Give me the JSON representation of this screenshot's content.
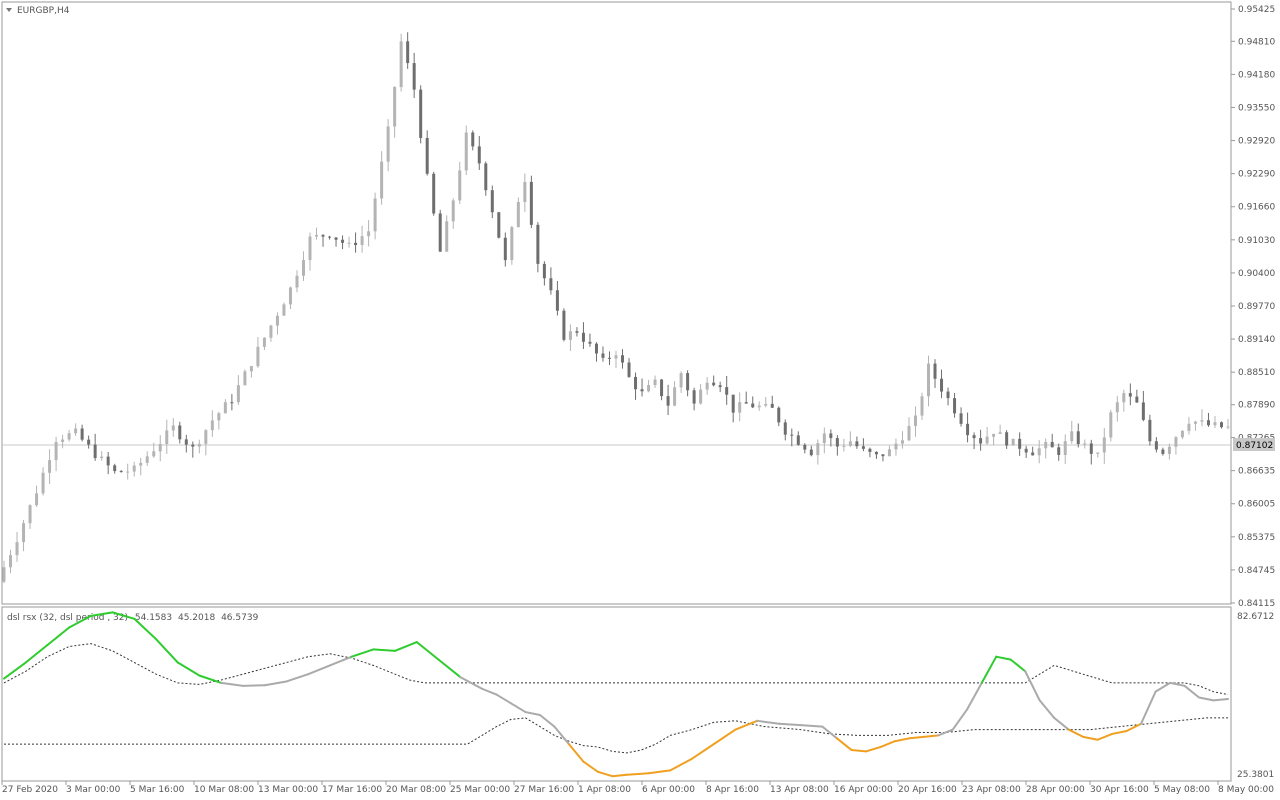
{
  "chart_data": {
    "type": "candlestick",
    "symbol": "EURGBP,H4",
    "price_axis": {
      "ticks": [
        "0.95425",
        "0.94810",
        "0.94180",
        "0.93550",
        "0.92920",
        "0.92290",
        "0.91660",
        "0.91030",
        "0.90400",
        "0.89770",
        "0.89140",
        "0.88510",
        "0.87890",
        "0.87265",
        "0.86635",
        "0.86005",
        "0.85375",
        "0.84745",
        "0.84115"
      ],
      "ylim": [
        0.84115,
        0.95425
      ],
      "current_price": "0.87102"
    },
    "time_axis": {
      "ticks": [
        "27 Feb 2020",
        "3 Mar 00:00",
        "5 Mar 16:00",
        "10 Mar 08:00",
        "13 Mar 00:00",
        "17 Mar 16:00",
        "20 Mar 08:00",
        "25 Mar 00:00",
        "27 Mar 16:00",
        "1 Apr 08:00",
        "6 Apr 00:00",
        "8 Apr 16:00",
        "13 Apr 08:00",
        "16 Apr 00:00",
        "20 Apr 16:00",
        "23 Apr 08:00",
        "28 Apr 00:00",
        "30 Apr 16:00",
        "5 May 08:00",
        "8 May 00:00"
      ]
    },
    "close_path": [
      [
        0.8452,
        0
      ],
      [
        0.8535,
        3
      ],
      [
        0.8625,
        6
      ],
      [
        0.8725,
        9
      ],
      [
        0.8735,
        12
      ],
      [
        0.8695,
        15
      ],
      [
        0.866,
        18
      ],
      [
        0.8665,
        21
      ],
      [
        0.8705,
        24
      ],
      [
        0.8745,
        27
      ],
      [
        0.8705,
        30
      ],
      [
        0.876,
        33
      ],
      [
        0.88,
        36
      ],
      [
        0.887,
        39
      ],
      [
        0.894,
        42
      ],
      [
        0.901,
        45
      ],
      [
        0.9105,
        48
      ],
      [
        0.9115,
        51
      ],
      [
        0.909,
        54
      ],
      [
        0.912,
        57
      ],
      [
        0.931,
        60
      ],
      [
        0.948,
        62
      ],
      [
        0.939,
        64
      ],
      [
        0.922,
        66
      ],
      [
        0.908,
        68
      ],
      [
        0.918,
        70
      ],
      [
        0.93,
        72
      ],
      [
        0.925,
        74
      ],
      [
        0.916,
        76
      ],
      [
        0.906,
        78
      ],
      [
        0.918,
        80
      ],
      [
        0.922,
        81
      ],
      [
        0.906,
        83
      ],
      [
        0.9,
        85
      ],
      [
        0.892,
        87
      ],
      [
        0.893,
        89
      ],
      [
        0.89,
        91
      ],
      [
        0.887,
        93
      ],
      [
        0.889,
        95
      ],
      [
        0.884,
        97
      ],
      [
        0.881,
        99
      ],
      [
        0.883,
        101
      ],
      [
        0.879,
        103
      ],
      [
        0.885,
        105
      ],
      [
        0.879,
        107
      ],
      [
        0.884,
        109
      ],
      [
        0.883,
        111
      ],
      [
        0.878,
        113
      ],
      [
        0.879,
        115
      ],
      [
        0.8785,
        117
      ],
      [
        0.878,
        119
      ],
      [
        0.874,
        121
      ],
      [
        0.872,
        123
      ],
      [
        0.87,
        125
      ],
      [
        0.8735,
        127
      ],
      [
        0.871,
        129
      ],
      [
        0.872,
        131
      ],
      [
        0.87,
        133
      ],
      [
        0.869,
        135
      ],
      [
        0.87,
        137
      ],
      [
        0.873,
        139
      ],
      [
        0.876,
        141
      ],
      [
        0.886,
        143
      ],
      [
        0.882,
        145
      ],
      [
        0.878,
        147
      ],
      [
        0.874,
        149
      ],
      [
        0.872,
        151
      ],
      [
        0.874,
        153
      ],
      [
        0.872,
        155
      ],
      [
        0.871,
        157
      ],
      [
        0.87,
        159
      ],
      [
        0.871,
        161
      ],
      [
        0.87,
        163
      ],
      [
        0.873,
        165
      ],
      [
        0.871,
        167
      ],
      [
        0.869,
        169
      ],
      [
        0.877,
        171
      ],
      [
        0.881,
        173
      ],
      [
        0.879,
        175
      ],
      [
        0.872,
        177
      ],
      [
        0.87,
        179
      ],
      [
        0.873,
        181
      ],
      [
        0.876,
        183
      ],
      [
        0.875,
        186
      ],
      [
        0.8745,
        189
      ]
    ],
    "indicator": {
      "name": "dsl rsx (32, dsl period , 32)",
      "values": [
        "54.1583",
        "45.2018",
        "46.5739"
      ],
      "axis_ticks": [
        "82.6712",
        "25.3801"
      ],
      "ylim": [
        25.3801,
        82.6712
      ],
      "rsx": [
        [
          59.5,
          0
        ],
        [
          65,
          3
        ],
        [
          71,
          6
        ],
        [
          77,
          9
        ],
        [
          81,
          12
        ],
        [
          82.2,
          15
        ],
        [
          80,
          18
        ],
        [
          73,
          21
        ],
        [
          65,
          24
        ],
        [
          60.5,
          27
        ],
        [
          58,
          30
        ],
        [
          57,
          33
        ],
        [
          57.2,
          36
        ],
        [
          58.5,
          39
        ],
        [
          61,
          42
        ],
        [
          64,
          45
        ],
        [
          67,
          48
        ],
        [
          69.5,
          51
        ],
        [
          69,
          54
        ],
        [
          72,
          57
        ],
        [
          66,
          60
        ],
        [
          60,
          63
        ],
        [
          56,
          66
        ],
        [
          54,
          68
        ],
        [
          51,
          70
        ],
        [
          48,
          72
        ],
        [
          47,
          74
        ],
        [
          43,
          76
        ],
        [
          37,
          78
        ],
        [
          31,
          80
        ],
        [
          27.5,
          82
        ],
        [
          26,
          84
        ],
        [
          26.5,
          86
        ],
        [
          27,
          89
        ],
        [
          28,
          92
        ],
        [
          32,
          95
        ],
        [
          37,
          98
        ],
        [
          42,
          101
        ],
        [
          45,
          104
        ],
        [
          44,
          107
        ],
        [
          43.5,
          110
        ],
        [
          43,
          113
        ],
        [
          39,
          115
        ],
        [
          35,
          117
        ],
        [
          34.5,
          119
        ],
        [
          36,
          121
        ],
        [
          38,
          123
        ],
        [
          39,
          125
        ],
        [
          39.5,
          127
        ],
        [
          40,
          129
        ],
        [
          42,
          131
        ],
        [
          49,
          133
        ],
        [
          58,
          135
        ],
        [
          67,
          137
        ],
        [
          66,
          139
        ],
        [
          62,
          141
        ],
        [
          52,
          143
        ],
        [
          46,
          145
        ],
        [
          42,
          147
        ],
        [
          39.5,
          149
        ],
        [
          38.5,
          151
        ],
        [
          40.5,
          153
        ],
        [
          41.5,
          155
        ],
        [
          44,
          157
        ],
        [
          55,
          159
        ],
        [
          58,
          161
        ],
        [
          57,
          163
        ],
        [
          53,
          165
        ],
        [
          52,
          167
        ],
        [
          52.5,
          169
        ]
      ],
      "rsx_colors": [
        "#2ecc2e",
        "#aaaaaa",
        "#f0a020"
      ],
      "upper": [
        [
          58,
          0
        ],
        [
          62,
          3
        ],
        [
          67,
          6
        ],
        [
          70.5,
          9
        ],
        [
          71.5,
          12
        ],
        [
          69,
          15
        ],
        [
          65,
          18
        ],
        [
          61,
          21
        ],
        [
          58,
          24
        ],
        [
          57.5,
          27
        ],
        [
          59,
          30
        ],
        [
          61,
          33
        ],
        [
          63,
          36
        ],
        [
          65,
          39
        ],
        [
          67,
          42
        ],
        [
          68,
          45
        ],
        [
          66.5,
          48
        ],
        [
          64,
          51
        ],
        [
          61,
          54
        ],
        [
          59,
          56
        ],
        [
          58,
          58
        ],
        [
          58,
          80
        ],
        [
          58,
          120
        ],
        [
          58,
          141
        ],
        [
          64,
          145
        ],
        [
          61,
          149
        ],
        [
          58,
          153
        ],
        [
          58,
          160
        ],
        [
          58,
          163
        ],
        [
          57,
          165
        ],
        [
          55,
          167
        ],
        [
          54,
          169
        ]
      ],
      "lower": [
        [
          37,
          0
        ],
        [
          37,
          62
        ],
        [
          37,
          64
        ],
        [
          40,
          66
        ],
        [
          43,
          68
        ],
        [
          45.5,
          70
        ],
        [
          46,
          72
        ],
        [
          43,
          74
        ],
        [
          40,
          76
        ],
        [
          38,
          78
        ],
        [
          36.5,
          80
        ],
        [
          36,
          82
        ],
        [
          34.5,
          84
        ],
        [
          34,
          86
        ],
        [
          35,
          88
        ],
        [
          37,
          90
        ],
        [
          40,
          92
        ],
        [
          42,
          95
        ],
        [
          44.5,
          98
        ],
        [
          45,
          101
        ],
        [
          43,
          105
        ],
        [
          42,
          110
        ],
        [
          40.5,
          114
        ],
        [
          40,
          118
        ],
        [
          40,
          122
        ],
        [
          41,
          126
        ],
        [
          41,
          130
        ],
        [
          42,
          134
        ],
        [
          42,
          138
        ],
        [
          42,
          142
        ],
        [
          42,
          146
        ],
        [
          42,
          150
        ],
        [
          43,
          154
        ],
        [
          44,
          158
        ],
        [
          45,
          162
        ],
        [
          46,
          166
        ],
        [
          46,
          169
        ]
      ]
    }
  }
}
